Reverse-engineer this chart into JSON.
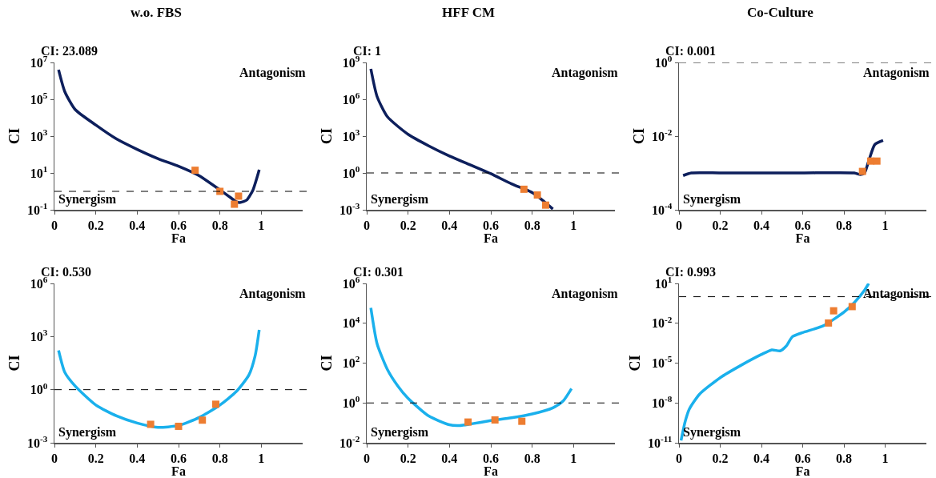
{
  "chart_data": [
    {
      "type": "line",
      "title": "w.o. FBS",
      "subtitle": "CI: 23.089",
      "xlabel": "Fa",
      "ylabel": "CI",
      "annotations": [
        "Antagonism",
        "Synergism"
      ],
      "log": "y",
      "grid": false,
      "legend": false,
      "xlim": [
        0,
        1.2
      ],
      "xticks": [
        0,
        0.2,
        0.4,
        0.6,
        0.8,
        1
      ],
      "ylim": [
        0.1,
        10000000
      ],
      "yticks": [
        {
          "value": 10000000,
          "label": "10$^{7}$"
        },
        {
          "value": 100000,
          "label": "10$^{5}$"
        },
        {
          "value": 1000,
          "label": "10$^{3}$"
        },
        {
          "value": 10,
          "label": "10$^{1}$"
        },
        {
          "value": 0.1,
          "label": "10$^{-1}$"
        }
      ],
      "ref_lines": [
        {
          "axis": "y",
          "value": 1,
          "line_style": "dashed",
          "color": "#000000"
        }
      ],
      "series": [
        {
          "type": "line",
          "color": "#0d1f5c",
          "marker": "none",
          "x": [
            0.02,
            0.05,
            0.1,
            0.2,
            0.3,
            0.4,
            0.5,
            0.6,
            0.7,
            0.8,
            0.85,
            0.88,
            0.9,
            0.93,
            0.96,
            0.98,
            0.99
          ],
          "values": [
            4000000,
            260000,
            28000,
            4000,
            700,
            190,
            60,
            23,
            7,
            1.2,
            0.47,
            0.27,
            0.25,
            0.34,
            1.2,
            6,
            15
          ]
        },
        {
          "type": "scatter",
          "color": "#ed7d31",
          "marker": "square",
          "x": [
            0.68,
            0.8,
            0.87,
            0.89
          ],
          "values": [
            14,
            1.0,
            0.2,
            0.55
          ]
        }
      ]
    },
    {
      "type": "line",
      "title": "HFF CM",
      "subtitle": "CI: 1",
      "xlabel": "Fa",
      "ylabel": "CI",
      "annotations": [
        "Antagonism",
        "Synergism"
      ],
      "log": "y",
      "grid": false,
      "legend": false,
      "xlim": [
        0,
        1.2
      ],
      "xticks": [
        0,
        0.2,
        0.4,
        0.6,
        0.8,
        1
      ],
      "ylim": [
        0.001,
        1000000000
      ],
      "yticks": [
        {
          "value": 1000000000,
          "label": "10$^{9}$"
        },
        {
          "value": 1000000,
          "label": "10$^{6}$"
        },
        {
          "value": 1000,
          "label": "10$^{3}$"
        },
        {
          "value": 1,
          "label": "10$^{0}$"
        },
        {
          "value": 0.001,
          "label": "10$^{-3}$"
        }
      ],
      "ref_lines": [
        {
          "axis": "y",
          "value": 1,
          "line_style": "dashed",
          "color": "#000000"
        }
      ],
      "series": [
        {
          "type": "line",
          "color": "#0d1f5c",
          "marker": "none",
          "x": [
            0.02,
            0.05,
            0.1,
            0.2,
            0.3,
            0.4,
            0.5,
            0.6,
            0.7,
            0.76,
            0.8,
            0.85,
            0.9
          ],
          "values": [
            300000000,
            1700000,
            38000,
            1400,
            160,
            24,
            4.6,
            0.87,
            0.13,
            0.05,
            0.025,
            0.006,
            0.00115
          ]
        },
        {
          "type": "scatter",
          "color": "#ed7d31",
          "marker": "square",
          "x": [
            0.76,
            0.825,
            0.865
          ],
          "values": [
            0.047,
            0.016,
            0.0024
          ]
        }
      ]
    },
    {
      "type": "line",
      "title": "Co-Culture",
      "subtitle": "CI: 0.001",
      "xlabel": "Fa",
      "ylabel": "CI",
      "annotations": [
        "Antagonism",
        "Synergism"
      ],
      "log": "y",
      "grid": false,
      "legend": false,
      "xlim": [
        0,
        1.2
      ],
      "xticks": [
        0,
        0.2,
        0.4,
        0.6,
        0.8,
        1
      ],
      "ylim": [
        0.0001,
        1
      ],
      "yticks": [
        {
          "value": 1,
          "label": "10$^{0}$"
        },
        {
          "value": 0.01,
          "label": "10$^{-2}$"
        },
        {
          "value": 0.0001,
          "label": "10$^{-4}$"
        }
      ],
      "ref_lines": [
        {
          "axis": "y",
          "value": 1,
          "line_style": "dashed",
          "color": "#000000"
        }
      ],
      "series": [
        {
          "type": "line",
          "color": "#0d1f5c",
          "marker": "none",
          "x": [
            0.02,
            0.06,
            0.2,
            0.4,
            0.6,
            0.85,
            0.88,
            0.9,
            0.92,
            0.95,
            0.99
          ],
          "values": [
            0.00085,
            0.001,
            0.001,
            0.001,
            0.001,
            0.001,
            0.0009,
            0.001,
            0.0021,
            0.0059,
            0.0076
          ]
        },
        {
          "type": "scatter",
          "color": "#ed7d31",
          "marker": "square",
          "x": [
            0.89,
            0.93,
            0.96
          ],
          "values": [
            0.0011,
            0.0021,
            0.0021
          ]
        }
      ]
    },
    {
      "type": "line",
      "subtitle": "CI: 0.530",
      "xlabel": "Fa",
      "ylabel": "CI",
      "annotations": [
        "Antagonism",
        "Synergism"
      ],
      "log": "y",
      "grid": false,
      "legend": false,
      "xlim": [
        0,
        1.2
      ],
      "xticks": [
        0,
        0.2,
        0.4,
        0.6,
        0.8,
        1
      ],
      "ylim": [
        0.001,
        1000000
      ],
      "yticks": [
        {
          "value": 1000000,
          "label": "10$^{6}$"
        },
        {
          "value": 1000,
          "label": "10$^{3}$"
        },
        {
          "value": 1,
          "label": "10$^{0}$"
        },
        {
          "value": 0.001,
          "label": "10$^{-3}$"
        }
      ],
      "ref_lines": [
        {
          "axis": "y",
          "value": 1,
          "line_style": "dashed",
          "color": "#000000"
        }
      ],
      "series": [
        {
          "type": "line",
          "color": "#1ab0ec",
          "marker": "none",
          "x": [
            0.02,
            0.05,
            0.1,
            0.2,
            0.3,
            0.4,
            0.5,
            0.6,
            0.7,
            0.8,
            0.88,
            0.94,
            0.97,
            0.99
          ],
          "values": [
            165,
            9.5,
            1.6,
            0.135,
            0.033,
            0.013,
            0.0074,
            0.0095,
            0.027,
            0.135,
            0.8,
            6.7,
            80,
            2400
          ]
        },
        {
          "type": "scatter",
          "color": "#ed7d31",
          "marker": "square",
          "x": [
            0.465,
            0.6,
            0.715,
            0.78
          ],
          "values": [
            0.011,
            0.0085,
            0.019,
            0.15
          ]
        }
      ]
    },
    {
      "type": "line",
      "subtitle": "CI: 0.301",
      "xlabel": "Fa",
      "ylabel": "CI",
      "annotations": [
        "Antagonism",
        "Synergism"
      ],
      "log": "y",
      "grid": false,
      "legend": false,
      "xlim": [
        0,
        1.2
      ],
      "xticks": [
        0,
        0.2,
        0.4,
        0.6,
        0.8,
        1
      ],
      "ylim": [
        0.01,
        1000000
      ],
      "yticks": [
        {
          "value": 1000000,
          "label": "10$^{6}$"
        },
        {
          "value": 10000,
          "label": "10$^{4}$"
        },
        {
          "value": 100,
          "label": "10$^{2}$"
        },
        {
          "value": 1,
          "label": "10$^{0}$"
        },
        {
          "value": 0.01,
          "label": "10$^{-2}$"
        }
      ],
      "ref_lines": [
        {
          "axis": "y",
          "value": 1,
          "line_style": "dashed",
          "color": "#000000"
        }
      ],
      "series": [
        {
          "type": "line",
          "color": "#1ab0ec",
          "marker": "none",
          "x": [
            0.02,
            0.05,
            0.1,
            0.15,
            0.2,
            0.3,
            0.4,
            0.45,
            0.5,
            0.6,
            0.7,
            0.8,
            0.9,
            0.95,
            0.99
          ],
          "values": [
            59000,
            950,
            48,
            7.2,
            1.7,
            0.22,
            0.08,
            0.074,
            0.087,
            0.13,
            0.18,
            0.28,
            0.57,
            1.26,
            5.2
          ]
        },
        {
          "type": "scatter",
          "color": "#ed7d31",
          "marker": "square",
          "x": [
            0.49,
            0.62,
            0.75
          ],
          "values": [
            0.11,
            0.14,
            0.12
          ]
        }
      ]
    },
    {
      "type": "line",
      "subtitle": "CI: 0.993",
      "xlabel": "Fa",
      "ylabel": "CI",
      "annotations": [
        "Antagonism",
        "Synergism"
      ],
      "log": "y",
      "grid": false,
      "legend": false,
      "xlim": [
        0,
        1.2
      ],
      "xticks": [
        0,
        0.2,
        0.4,
        0.6,
        0.8,
        1
      ],
      "ylim": [
        1e-11,
        10
      ],
      "yticks": [
        {
          "value": 10,
          "label": "10$^{1}$"
        },
        {
          "value": 0.01,
          "label": "10$^{-2}$"
        },
        {
          "value": 1e-05,
          "label": "10$^{-5}$"
        },
        {
          "value": 1e-08,
          "label": "10$^{-8}$"
        },
        {
          "value": 1e-11,
          "label": "10$^{-11}$"
        }
      ],
      "ref_lines": [
        {
          "axis": "y",
          "value": 1,
          "line_style": "dashed",
          "color": "#000000"
        }
      ],
      "series": [
        {
          "type": "line",
          "color": "#1ab0ec",
          "marker": "none",
          "x": [
            0.01,
            0.03,
            0.05,
            0.1,
            0.2,
            0.3,
            0.4,
            0.45,
            0.49,
            0.52,
            0.55,
            0.6,
            0.7,
            0.8,
            0.85,
            0.9,
            0.92
          ],
          "values": [
            1.5e-11,
            4e-10,
            3.4e-09,
            4.6e-08,
            8e-07,
            6.7e-06,
            4.5e-05,
            0.0001,
            8.3e-05,
            0.00019,
            0.00098,
            0.002,
            0.0065,
            0.069,
            0.36,
            3.1,
            10
          ]
        },
        {
          "type": "scatter",
          "color": "#ed7d31",
          "marker": "square",
          "x": [
            0.725,
            0.75,
            0.84
          ],
          "values": [
            0.0105,
            0.087,
            0.18
          ]
        }
      ]
    }
  ]
}
